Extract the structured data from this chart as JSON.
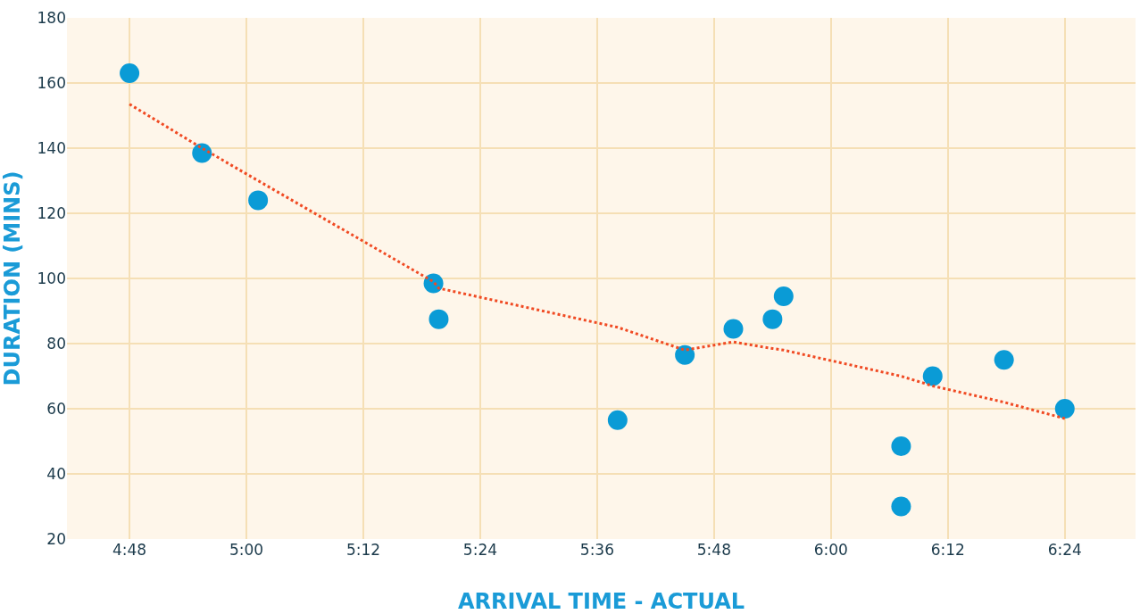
{
  "chart_data": {
    "type": "scatter",
    "xlabel": "ARRIVAL TIME - ACTUAL",
    "ylabel": "DURATION (MINS)",
    "xlim": [
      4.693,
      6.521
    ],
    "ylim": [
      20,
      180
    ],
    "xticks": [
      {
        "value": 4.8,
        "label": "4:48"
      },
      {
        "value": 5.0,
        "label": "5:00"
      },
      {
        "value": 5.2,
        "label": "5:12"
      },
      {
        "value": 5.4,
        "label": "5:24"
      },
      {
        "value": 5.6,
        "label": "5:36"
      },
      {
        "value": 5.8,
        "label": "5:48"
      },
      {
        "value": 6.0,
        "label": "6:00"
      },
      {
        "value": 6.2,
        "label": "6:12"
      },
      {
        "value": 6.4,
        "label": "6:24"
      }
    ],
    "yticks": [
      20,
      40,
      60,
      80,
      100,
      120,
      140,
      160,
      180
    ],
    "grid": true,
    "series": [
      {
        "color": "#0a9bd6",
        "marker": "circle",
        "x": [
          4.8,
          4.924,
          5.02,
          5.32,
          5.329,
          5.635,
          5.75,
          5.833,
          5.9,
          5.919,
          6.12,
          6.12,
          6.174,
          6.296,
          6.4
        ],
        "values": [
          163,
          138.5,
          124,
          98.5,
          87.5,
          56.5,
          76.5,
          84.5,
          87.5,
          94.5,
          48.5,
          30,
          70,
          75,
          60
        ]
      },
      {
        "type": "line",
        "color": "#f04a23",
        "marker": "none",
        "line_style": "dotted",
        "x": [
          4.8,
          4.924,
          5.02,
          5.32,
          5.329,
          5.635,
          5.75,
          5.833,
          5.9,
          5.919,
          6.12,
          6.174,
          6.296,
          6.4
        ],
        "values": [
          153.5,
          140,
          130,
          99,
          97,
          85,
          78,
          80.5,
          78.5,
          78,
          70,
          67,
          62,
          57
        ]
      }
    ]
  }
}
